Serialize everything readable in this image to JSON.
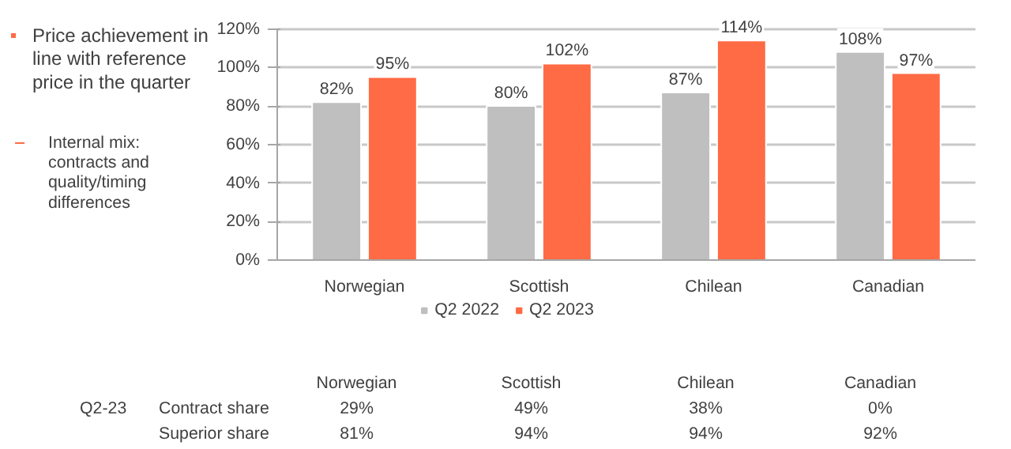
{
  "chart_data": {
    "type": "bar",
    "categories": [
      "Norwegian",
      "Scottish",
      "Chilean",
      "Canadian"
    ],
    "series": [
      {
        "name": "Q2 2022",
        "color": "#bfbfbf",
        "values": [
          82,
          80,
          87,
          108
        ],
        "value_labels": [
          "82%",
          "80%",
          "87%",
          "108%"
        ]
      },
      {
        "name": "Q2 2023",
        "color": "#ff6b45",
        "values": [
          95,
          102,
          114,
          97
        ],
        "value_labels": [
          "95%",
          "102%",
          "114%",
          "97%"
        ]
      }
    ],
    "ylim": [
      0,
      120
    ],
    "yticks": [
      {
        "value": 0,
        "label": "0%"
      },
      {
        "value": 20,
        "label": "20%"
      },
      {
        "value": 40,
        "label": "40%"
      },
      {
        "value": 60,
        "label": "60%"
      },
      {
        "value": 80,
        "label": "80%"
      },
      {
        "value": 100,
        "label": "100%"
      },
      {
        "value": 120,
        "label": "120%"
      }
    ],
    "grid": "y",
    "legend": "bottom",
    "annotations": [
      "Price achievement in line with reference price in the quarter",
      "Internal mix: contracts and quality/timing differences",
      "Q2-23",
      "Contract share",
      "29%",
      "49%",
      "38%",
      "0%",
      "Superior share",
      "81%",
      "94%",
      "94%",
      "92%"
    ]
  }
}
